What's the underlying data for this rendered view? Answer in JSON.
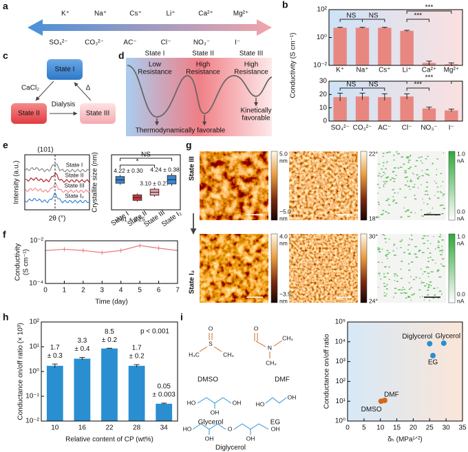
{
  "panel_labels": [
    "a",
    "b",
    "c",
    "d",
    "e",
    "f",
    "g",
    "h",
    "i"
  ],
  "panel_a": {
    "cations": [
      "K⁺",
      "Na⁺",
      "Cs⁺",
      "Li⁺",
      "Ca²⁺",
      "Mg²⁺"
    ],
    "anions": [
      "SO₄²⁻",
      "CO₃²⁻",
      "AC⁻",
      "Cl⁻",
      "NO₃⁻",
      "I⁻"
    ]
  },
  "panel_c": {
    "states": [
      "State I",
      "State II",
      "State III"
    ],
    "arrows": [
      "CaCl₂",
      "Δ",
      "Dialysis"
    ]
  },
  "panel_d": {
    "states": [
      "State I",
      "State II",
      "State III"
    ],
    "levels": [
      [
        "Low",
        "Resistance"
      ],
      [
        "High",
        "Resistance"
      ],
      [
        "High",
        "Resistance"
      ]
    ],
    "notes": [
      "Thermodynamically favorable",
      [
        "Kinetically",
        "favorable"
      ]
    ]
  },
  "panel_e_xrd": {
    "peak": "(101)",
    "curves": [
      "State I",
      "State II",
      "State III",
      "State I₂"
    ],
    "xlabel": "2θ (°)",
    "ylabel": "Intensity (a.u.)"
  },
  "panel_g": {
    "rows": [
      "State III",
      "State I₂"
    ],
    "colorbars": [
      [
        {
          "top": "5.0",
          "top_unit": "nm",
          "bottom": "−5.0",
          "bottom_unit": "nm"
        },
        {
          "top": "22°",
          "bottom": "18°"
        },
        {
          "top": "1.0",
          "top_unit": "nA",
          "bottom": "0.0",
          "bottom_unit": "nA"
        }
      ],
      [
        {
          "top": "4.0",
          "top_unit": "nm",
          "bottom": "−3.5",
          "bottom_unit": "nm"
        },
        {
          "top": "30°",
          "bottom": "24°"
        },
        {
          "top": "1.0",
          "top_unit": "nA",
          "bottom": "0.0",
          "bottom_unit": "nA"
        }
      ]
    ]
  },
  "panel_i_structures": [
    {
      "name": "DMSO",
      "atoms": [
        "O",
        "S",
        "H₃C",
        "CH₃"
      ]
    },
    {
      "name": "DMF",
      "atoms": [
        "O",
        "N",
        "CH₃",
        "CH₃"
      ]
    },
    {
      "name": "Glycerol",
      "atoms": [
        "HO",
        "OH",
        "OH"
      ]
    },
    {
      "name": "EG",
      "atoms": [
        "HO",
        "OH"
      ]
    },
    {
      "name": "Diglycerol",
      "atoms": [
        "HO",
        "O",
        "OH",
        "OH",
        "OH"
      ]
    }
  ],
  "chart_data": [
    {
      "type": "bar",
      "ylabel": "Conductivity (S cm⁻¹)",
      "categories": [
        "K⁺",
        "Na⁺",
        "Cs⁺",
        "Li⁺",
        "Ca²⁺",
        "Mg²⁺"
      ],
      "values": [
        5,
        5,
        5,
        3,
        0.015,
        0.012
      ],
      "errors": [
        0.4,
        0.4,
        0.4,
        0.3,
        0.005,
        0.003
      ],
      "color": "#e8877f",
      "background": [
        "#cde3f6",
        "#fbe0e0"
      ],
      "log_y": true,
      "ylim": [
        0.01,
        100
      ],
      "yticks": [
        {
          "value": 0.01,
          "label": "10⁻²"
        },
        {
          "value": 1,
          "label": "10⁰"
        },
        {
          "value": 100,
          "label": "10²"
        }
      ],
      "annotations": [
        "NS",
        "NS",
        "***",
        "***"
      ]
    },
    {
      "type": "bar",
      "categories": [
        "SO₄²⁻",
        "CO₃²⁻",
        "AC⁻",
        "Cl⁻",
        "NO₃⁻",
        "I⁻"
      ],
      "values": [
        18,
        18.5,
        18,
        18.5,
        9.5,
        8
      ],
      "errors": [
        3,
        2.5,
        2.5,
        2,
        1,
        1
      ],
      "color": "#e8877f",
      "background": [
        "#cde3f6",
        "#fbe0e0"
      ],
      "ylim": [
        0,
        30
      ],
      "yticks": [
        0,
        10,
        20,
        30
      ],
      "annotations": [
        "NS",
        "NS",
        "***",
        "***"
      ]
    },
    {
      "type": "box",
      "ylabel": "Crystallite size (nm)",
      "categories": [
        "State I",
        "State II",
        "State III",
        "State I₂"
      ],
      "values": [
        4.22,
        2.61,
        3.1,
        4.24
      ],
      "errors": [
        0.3,
        0.25,
        0.27,
        0.38
      ],
      "value_labels": [
        "4.22 ± 0.30",
        "2.61 ± 0.25",
        "3.10 ± 0.27",
        "4.24 ± 0.38"
      ],
      "colors": [
        "#3a86d4",
        "#d8343c",
        "#f2a3ab",
        "#3a86d4"
      ],
      "ylim": [
        1.5,
        6.5
      ],
      "annotations": [
        "NS",
        "*"
      ]
    },
    {
      "type": "line",
      "xlabel": "Time (day)",
      "ylabel": [
        "Conductivity",
        "(S cm⁻¹)"
      ],
      "x": [
        0,
        1,
        2,
        3,
        4,
        5,
        6,
        7
      ],
      "values": [
        0.0035,
        0.004,
        0.0035,
        0.0028,
        0.0035,
        0.006,
        0.0045,
        0.0035
      ],
      "color": "#e8777a",
      "log_y": true,
      "ylim": [
        0.0001,
        0.01
      ],
      "yticks": [
        {
          "value": 0.0001,
          "label": "10⁻⁴"
        },
        {
          "value": 0.01,
          "label": "10⁻²"
        }
      ],
      "xlim": [
        0,
        7
      ],
      "xticks": [
        0,
        1,
        2,
        3,
        4,
        5,
        6,
        7
      ]
    },
    {
      "type": "bar",
      "xlabel": "Relative content of CP (wt%)",
      "ylabel": "Conductance on/off ratio (× 10³)",
      "categories": [
        "10",
        "16",
        "22",
        "28",
        "34"
      ],
      "values": [
        1.7,
        3.3,
        8.5,
        1.7,
        0.05
      ],
      "errors": [
        0.3,
        0.4,
        0.2,
        0.2,
        0.003
      ],
      "value_labels": [
        "1.7",
        "3.3",
        "8.5",
        "1.7",
        "0.05"
      ],
      "error_labels": [
        "± 0.3",
        "± 0.4",
        "± 0.2",
        "± 0.2",
        "± 0.003"
      ],
      "color": "#2a8fd0",
      "log_y": true,
      "ylim": [
        0.01,
        100
      ],
      "yticks": [
        {
          "value": 0.01,
          "label": "10⁻²"
        },
        {
          "value": 0.1,
          "label": "10⁻¹"
        },
        {
          "value": 1,
          "label": "10⁰"
        },
        {
          "value": 10,
          "label": "10¹"
        },
        {
          "value": 100,
          "label": "10²"
        }
      ],
      "annotations": [
        "p < 0.001"
      ]
    },
    {
      "type": "scatter",
      "xlabel": "δₕ (MPa¹ᐟ²)",
      "ylabel": "Conductance on/off ratio",
      "x": [
        10.2,
        11.3,
        26,
        25,
        29.3
      ],
      "values": [
        10,
        11,
        2000,
        8000,
        8500
      ],
      "point_labels": [
        "DMSO",
        "DMF",
        "EG",
        "Diglycerol",
        "Glycerol"
      ],
      "colors": [
        "#d2691e",
        "#d2691e",
        "#2a8fd0",
        "#2a8fd0",
        "#2a8fd0"
      ],
      "background": [
        "#d6e8f7",
        "#fbe6d8"
      ],
      "log_y": true,
      "ylim": [
        1,
        100000
      ],
      "yticks": [
        {
          "value": 1,
          "label": "10⁰"
        },
        {
          "value": 10,
          "label": "10¹"
        },
        {
          "value": 100,
          "label": "10²"
        },
        {
          "value": 1000,
          "label": "10³"
        },
        {
          "value": 10000,
          "label": "10⁴"
        },
        {
          "value": 100000,
          "label": "10⁵"
        }
      ],
      "xlim": [
        0,
        35
      ],
      "xticks": [
        0,
        5,
        10,
        15,
        20,
        25,
        30,
        35
      ]
    }
  ]
}
